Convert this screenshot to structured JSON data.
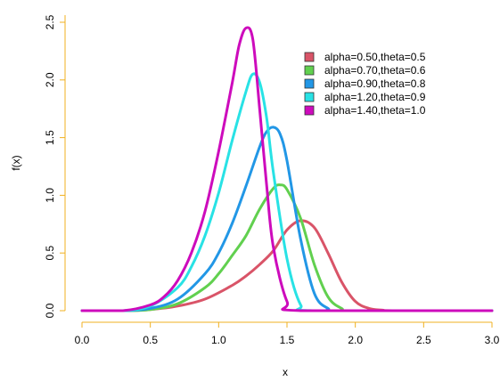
{
  "chart_data": {
    "type": "line",
    "title": "",
    "xlabel": "x",
    "ylabel": "f(x)",
    "xlim": [
      0,
      3
    ],
    "ylim": [
      0,
      2.5
    ],
    "x_ticks": [
      "0.0",
      "0.5",
      "1.0",
      "1.5",
      "2.0",
      "2.5",
      "3.0"
    ],
    "y_ticks": [
      "0.0",
      "0.5",
      "1.0",
      "1.5",
      "2.0",
      "2.5"
    ],
    "grid": false,
    "legend_position": "top-right",
    "axis_color": "#f0b020",
    "series": [
      {
        "name": "alpha=0.50,theta=0.5",
        "color": "#d95468",
        "x": [
          0.0,
          0.3,
          0.5,
          0.7,
          0.9,
          1.1,
          1.2,
          1.3,
          1.4,
          1.5,
          1.6,
          1.7,
          1.8,
          1.9,
          2.0,
          2.1,
          2.2,
          2.3,
          3.0
        ],
        "y": [
          0.0,
          0.0,
          0.01,
          0.04,
          0.1,
          0.22,
          0.3,
          0.4,
          0.52,
          0.7,
          0.78,
          0.72,
          0.5,
          0.25,
          0.08,
          0.02,
          0.005,
          0.0,
          0.0
        ]
      },
      {
        "name": "alpha=0.70,theta=0.6",
        "color": "#61d04f",
        "x": [
          0.0,
          0.3,
          0.5,
          0.7,
          0.9,
          1.0,
          1.1,
          1.2,
          1.3,
          1.4,
          1.45,
          1.5,
          1.6,
          1.7,
          1.8,
          1.9,
          2.0,
          3.0
        ],
        "y": [
          0.0,
          0.0,
          0.01,
          0.06,
          0.2,
          0.32,
          0.48,
          0.65,
          0.88,
          1.06,
          1.09,
          1.05,
          0.8,
          0.4,
          0.12,
          0.02,
          0.0,
          0.0
        ]
      },
      {
        "name": "alpha=0.90,theta=0.8",
        "color": "#2297e6",
        "x": [
          0.0,
          0.3,
          0.5,
          0.7,
          0.9,
          1.0,
          1.1,
          1.2,
          1.3,
          1.35,
          1.4,
          1.45,
          1.5,
          1.6,
          1.7,
          1.8,
          1.9,
          3.0
        ],
        "y": [
          0.0,
          0.0,
          0.02,
          0.1,
          0.32,
          0.5,
          0.76,
          1.08,
          1.42,
          1.55,
          1.59,
          1.53,
          1.3,
          0.62,
          0.15,
          0.02,
          0.0,
          0.0
        ]
      },
      {
        "name": "alpha=1.20,theta=0.9",
        "color": "#28e2e5",
        "x": [
          0.0,
          0.3,
          0.5,
          0.7,
          0.8,
          0.9,
          1.0,
          1.1,
          1.2,
          1.25,
          1.3,
          1.35,
          1.4,
          1.5,
          1.6,
          1.7,
          3.0
        ],
        "y": [
          0.0,
          0.0,
          0.04,
          0.2,
          0.38,
          0.65,
          1.02,
          1.48,
          1.9,
          2.05,
          1.98,
          1.68,
          1.2,
          0.45,
          0.05,
          0.0,
          0.0
        ]
      },
      {
        "name": "alpha=1.40,theta=1.0",
        "color": "#cd0bbc",
        "x": [
          0.0,
          0.3,
          0.5,
          0.6,
          0.7,
          0.8,
          0.9,
          1.0,
          1.1,
          1.15,
          1.2,
          1.25,
          1.3,
          1.35,
          1.4,
          1.5,
          1.6,
          3.0
        ],
        "y": [
          0.0,
          0.0,
          0.05,
          0.12,
          0.26,
          0.5,
          0.86,
          1.38,
          1.98,
          2.3,
          2.45,
          2.35,
          1.75,
          1.1,
          0.55,
          0.08,
          0.0,
          0.0
        ]
      }
    ]
  }
}
